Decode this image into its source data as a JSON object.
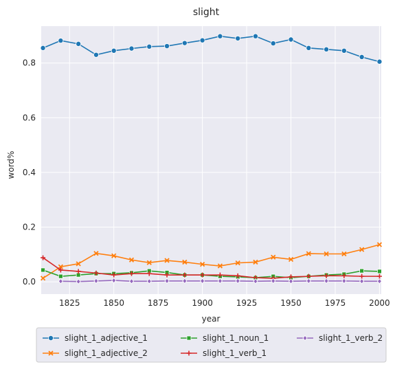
{
  "chart_data": {
    "type": "line",
    "title": "slight",
    "xlabel": "year",
    "ylabel": "word%",
    "xlim": [
      1809,
      2001
    ],
    "ylim": [
      -0.045,
      0.935
    ],
    "xticks": [
      1825,
      1850,
      1875,
      1900,
      1925,
      1950,
      1975,
      2000
    ],
    "yticks": [
      0.0,
      0.2,
      0.4,
      0.6,
      0.8
    ],
    "ytick_labels": [
      "0.0",
      "0.2",
      "0.4",
      "0.6",
      "0.8"
    ],
    "grid": true,
    "legend_position": "below",
    "series": [
      {
        "name": "slight_1_adjective_1",
        "color": "#1f77b4",
        "marker": "circle",
        "x": [
          1810,
          1820,
          1830,
          1840,
          1850,
          1860,
          1870,
          1880,
          1890,
          1900,
          1910,
          1920,
          1930,
          1940,
          1950,
          1960,
          1970,
          1980,
          1990,
          2000
        ],
        "y": [
          0.855,
          0.882,
          0.87,
          0.83,
          0.845,
          0.853,
          0.86,
          0.862,
          0.873,
          0.883,
          0.898,
          0.89,
          0.898,
          0.872,
          0.886,
          0.855,
          0.85,
          0.845,
          0.822,
          0.805
        ]
      },
      {
        "name": "slight_1_adjective_2",
        "color": "#ff7f0e",
        "marker": "x",
        "x": [
          1810,
          1820,
          1830,
          1840,
          1850,
          1860,
          1870,
          1880,
          1890,
          1900,
          1910,
          1920,
          1930,
          1940,
          1950,
          1960,
          1970,
          1980,
          1990,
          2000
        ],
        "y": [
          0.013,
          0.055,
          0.066,
          0.104,
          0.095,
          0.08,
          0.07,
          0.078,
          0.072,
          0.064,
          0.058,
          0.069,
          0.072,
          0.09,
          0.082,
          0.103,
          0.102,
          0.102,
          0.118,
          0.136
        ]
      },
      {
        "name": "slight_1_noun_1",
        "color": "#2ca02c",
        "marker": "square",
        "x": [
          1810,
          1820,
          1830,
          1840,
          1850,
          1860,
          1870,
          1880,
          1890,
          1900,
          1910,
          1920,
          1930,
          1940,
          1950,
          1960,
          1970,
          1980,
          1990,
          2000
        ],
        "y": [
          0.043,
          0.02,
          0.025,
          0.03,
          0.03,
          0.033,
          0.04,
          0.034,
          0.025,
          0.025,
          0.02,
          0.018,
          0.015,
          0.02,
          0.015,
          0.02,
          0.025,
          0.028,
          0.04,
          0.038
        ]
      },
      {
        "name": "slight_1_verb_1",
        "color": "#d62728",
        "marker": "plus",
        "x": [
          1810,
          1820,
          1830,
          1840,
          1850,
          1860,
          1870,
          1880,
          1890,
          1900,
          1910,
          1920,
          1930,
          1940,
          1950,
          1960,
          1970,
          1980,
          1990,
          2000
        ],
        "y": [
          0.088,
          0.043,
          0.038,
          0.032,
          0.025,
          0.03,
          0.03,
          0.025,
          0.025,
          0.025,
          0.025,
          0.022,
          0.015,
          0.013,
          0.018,
          0.02,
          0.022,
          0.022,
          0.02,
          0.02
        ]
      },
      {
        "name": "slight_1_verb_2",
        "color": "#9467bd",
        "marker": "diamond",
        "x": [
          1820,
          1830,
          1840,
          1850,
          1860,
          1870,
          1880,
          1890,
          1900,
          1910,
          1920,
          1930,
          1940,
          1950,
          1960,
          1970,
          1980,
          1990,
          2000
        ],
        "y": [
          0.002,
          0.001,
          0.003,
          0.005,
          0.002,
          0.002,
          0.003,
          0.003,
          0.003,
          0.003,
          0.003,
          0.002,
          0.003,
          0.002,
          0.003,
          0.003,
          0.003,
          0.002,
          0.002
        ]
      }
    ]
  }
}
